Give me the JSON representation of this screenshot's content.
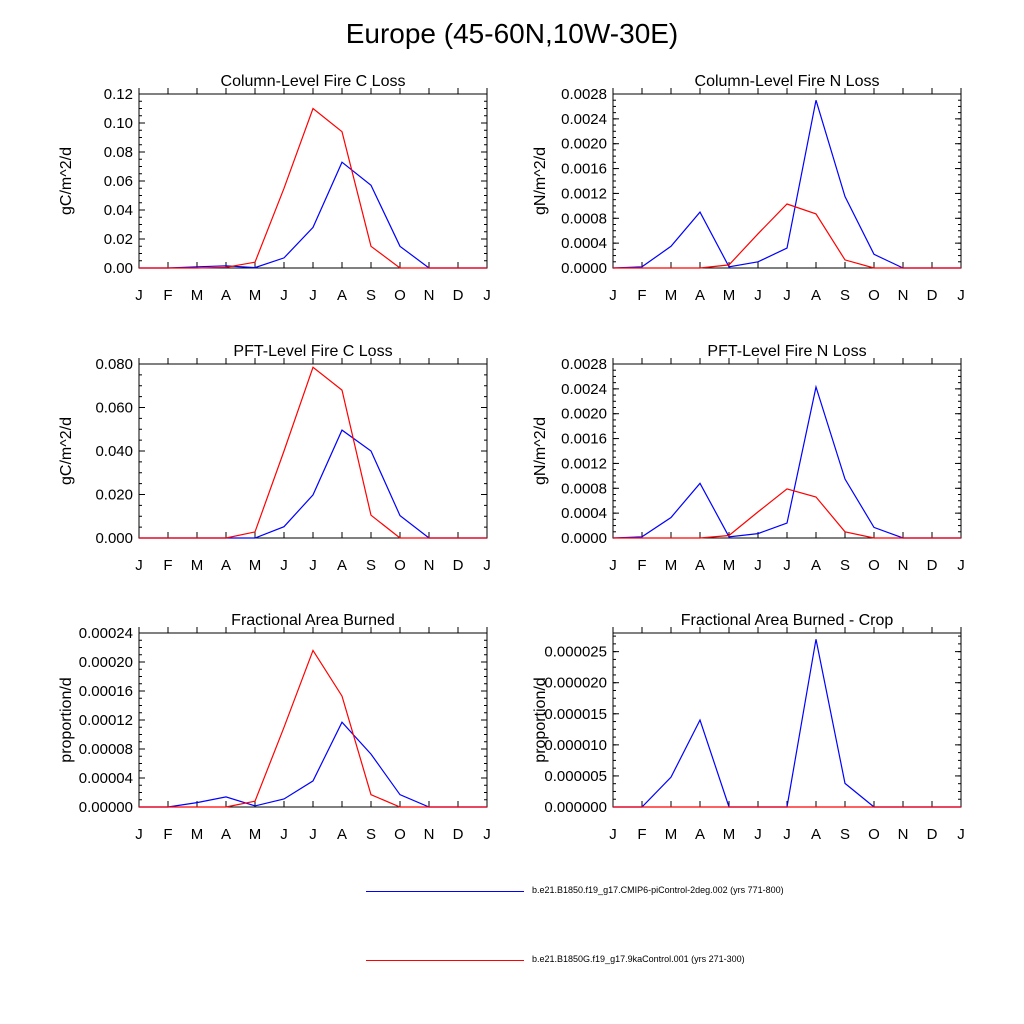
{
  "figure": {
    "title": "Europe (45-60N,10W-30E)",
    "months": [
      "J",
      "F",
      "M",
      "A",
      "M",
      "J",
      "J",
      "A",
      "S",
      "O",
      "N",
      "D",
      "J"
    ]
  },
  "legend": [
    {
      "label": "b.e21.B1850.f19_g17.CMIP6-piControl-2deg.002 (yrs 771-800)",
      "color": "#0000ff"
    },
    {
      "label": "b.e21.B1850G.f19_g17.9kaControl.001 (yrs 271-300)",
      "color": "#ff0000"
    }
  ],
  "colors": {
    "series_1": "#0000ff",
    "series_2": "#ff0000",
    "axes": "#000000"
  },
  "chart_data": [
    {
      "type": "line",
      "title": "Column-Level Fire C Loss",
      "ylabel": "gC/m^2/d",
      "ylim": [
        0,
        0.12
      ],
      "yticks": [
        "0.00",
        "0.02",
        "0.04",
        "0.06",
        "0.08",
        "0.10",
        "0.12"
      ],
      "x": [
        "J",
        "F",
        "M",
        "A",
        "M",
        "J",
        "J",
        "A",
        "S",
        "O",
        "N",
        "D",
        "J"
      ],
      "series": [
        {
          "color": "#0000ff",
          "values": [
            0,
            0,
            0.0008,
            0.0015,
            0.0003,
            0.007,
            0.028,
            0.073,
            0.057,
            0.015,
            0,
            0,
            0
          ]
        },
        {
          "color": "#ff0000",
          "values": [
            0,
            0,
            0,
            0.0005,
            0.004,
            0.055,
            0.11,
            0.094,
            0.015,
            0,
            0,
            0,
            0
          ]
        }
      ]
    },
    {
      "type": "line",
      "title": "Column-Level Fire N Loss",
      "ylabel": "gN/m^2/d",
      "ylim": [
        0,
        0.0028
      ],
      "yticks": [
        "0.0000",
        "0.0004",
        "0.0008",
        "0.0012",
        "0.0016",
        "0.0020",
        "0.0024",
        "0.0028"
      ],
      "x": [
        "J",
        "F",
        "M",
        "A",
        "M",
        "J",
        "J",
        "A",
        "S",
        "O",
        "N",
        "D",
        "J"
      ],
      "series": [
        {
          "color": "#0000ff",
          "values": [
            0,
            2e-05,
            0.00035,
            0.0009,
            2e-05,
            0.0001,
            0.00032,
            0.0027,
            0.00115,
            0.00022,
            0,
            0,
            0
          ]
        },
        {
          "color": "#ff0000",
          "values": [
            0,
            0,
            0,
            0,
            5e-05,
            0.00055,
            0.00103,
            0.00087,
            0.00013,
            0,
            0,
            0,
            0
          ]
        }
      ]
    },
    {
      "type": "line",
      "title": "PFT-Level Fire C Loss",
      "ylabel": "gC/m^2/d",
      "ylim": [
        0,
        0.08
      ],
      "yticks": [
        "0.000",
        "0.020",
        "0.040",
        "0.060",
        "0.080"
      ],
      "x": [
        "J",
        "F",
        "M",
        "A",
        "M",
        "J",
        "J",
        "A",
        "S",
        "O",
        "N",
        "D",
        "J"
      ],
      "series": [
        {
          "color": "#0000ff",
          "values": [
            0,
            0,
            0,
            0,
            0,
            0.0052,
            0.0198,
            0.0496,
            0.04,
            0.0103,
            0,
            0,
            0
          ]
        },
        {
          "color": "#ff0000",
          "values": [
            0,
            0,
            0,
            0,
            0.0028,
            0.04,
            0.0785,
            0.068,
            0.0105,
            0,
            0,
            0,
            0
          ]
        }
      ]
    },
    {
      "type": "line",
      "title": "PFT-Level Fire N Loss",
      "ylabel": "gN/m^2/d",
      "ylim": [
        0,
        0.0028
      ],
      "yticks": [
        "0.0000",
        "0.0004",
        "0.0008",
        "0.0012",
        "0.0016",
        "0.0020",
        "0.0024",
        "0.0028"
      ],
      "x": [
        "J",
        "F",
        "M",
        "A",
        "M",
        "J",
        "J",
        "A",
        "S",
        "O",
        "N",
        "D",
        "J"
      ],
      "series": [
        {
          "color": "#0000ff",
          "values": [
            0,
            2e-05,
            0.00033,
            0.00088,
            2e-05,
            7e-05,
            0.00024,
            0.00243,
            0.00095,
            0.00017,
            0,
            0,
            0
          ]
        },
        {
          "color": "#ff0000",
          "values": [
            0,
            0,
            0,
            0,
            4e-05,
            0.00042,
            0.00079,
            0.00066,
            0.0001,
            0,
            0,
            0,
            0
          ]
        }
      ]
    },
    {
      "type": "line",
      "title": "Fractional Area Burned",
      "ylabel": "proportion/d",
      "ylim": [
        0,
        0.00024
      ],
      "yticks": [
        "0.00000",
        "0.00004",
        "0.00008",
        "0.00012",
        "0.00016",
        "0.00020",
        "0.00024"
      ],
      "x": [
        "J",
        "F",
        "M",
        "A",
        "M",
        "J",
        "J",
        "A",
        "S",
        "O",
        "N",
        "D",
        "J"
      ],
      "series": [
        {
          "color": "#0000ff",
          "values": [
            0,
            0,
            6e-06,
            1.4e-05,
            1.5e-06,
            1.1e-05,
            3.6e-05,
            0.000117,
            7.3e-05,
            1.7e-05,
            0,
            0,
            0
          ]
        },
        {
          "color": "#ff0000",
          "values": [
            0,
            0,
            0,
            0,
            8e-06,
            0.00011,
            0.000216,
            0.000153,
            1.7e-05,
            0,
            0,
            0,
            0
          ]
        }
      ]
    },
    {
      "type": "line",
      "title": "Fractional Area Burned - Crop",
      "ylabel": "proportion/d",
      "ylim": [
        0,
        2.8e-05
      ],
      "yticks": [
        "0.000000",
        "0.000005",
        "0.000010",
        "0.000015",
        "0.000020",
        "0.000025"
      ],
      "ytick_values": [
        0,
        5e-06,
        1e-05,
        1.5e-05,
        2e-05,
        2.5e-05
      ],
      "x": [
        "J",
        "F",
        "M",
        "A",
        "M",
        "J",
        "J",
        "A",
        "S",
        "O",
        "N",
        "D",
        "J"
      ],
      "series": [
        {
          "color": "#0000ff",
          "values": [
            0,
            0,
            4.8e-06,
            1.4e-05,
            0,
            0,
            0,
            2.7e-05,
            3.8e-06,
            0,
            0,
            0,
            0
          ]
        },
        {
          "color": "#ff0000",
          "values": [
            0,
            0,
            0,
            0,
            0,
            0,
            0,
            0,
            0,
            0,
            0,
            0,
            0
          ]
        }
      ]
    }
  ]
}
